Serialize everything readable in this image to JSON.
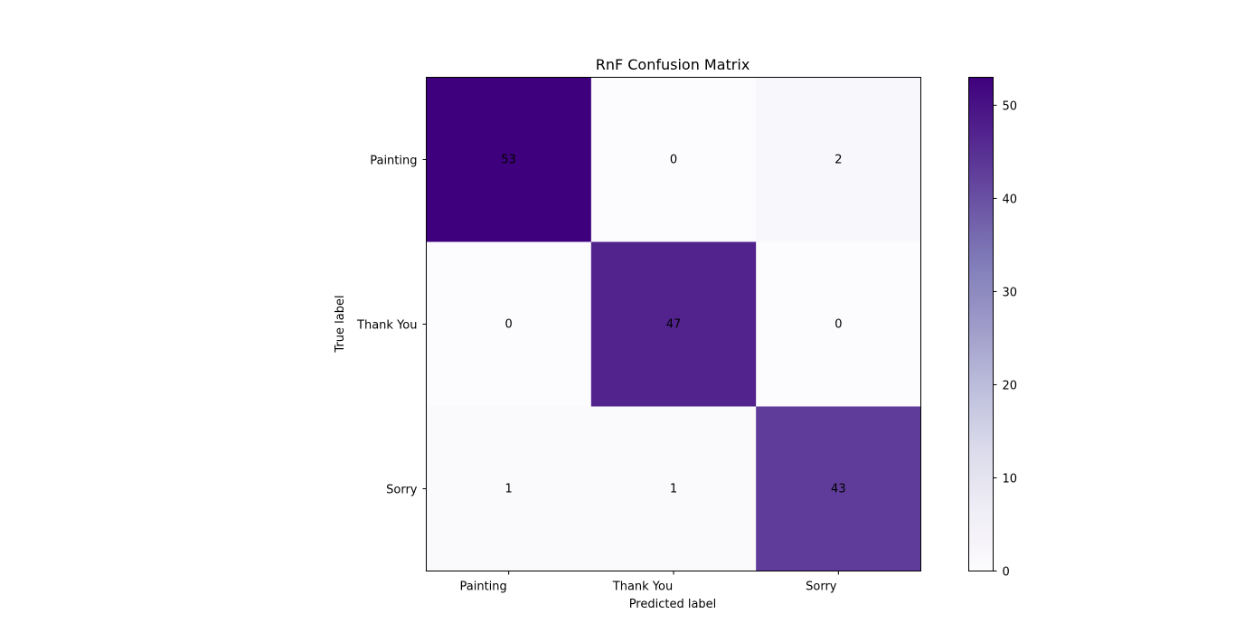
{
  "chart_data": {
    "type": "heatmap",
    "title": "RnF Confusion Matrix",
    "xlabel": "Predicted label",
    "ylabel": "True label",
    "x_categories": [
      "Painting",
      "Thank You",
      "Sorry"
    ],
    "y_categories": [
      "Painting",
      "Thank You",
      "Sorry"
    ],
    "values": [
      [
        53,
        0,
        2
      ],
      [
        0,
        47,
        0
      ],
      [
        1,
        1,
        43
      ]
    ],
    "colormap": "Purples",
    "color_low": "#fcfbfd",
    "color_high": "#3f007d",
    "colorbar": {
      "min": 0,
      "max": 53,
      "ticks": [
        0,
        10,
        20,
        30,
        40,
        50
      ]
    },
    "annotation_threshold": 26.5
  }
}
